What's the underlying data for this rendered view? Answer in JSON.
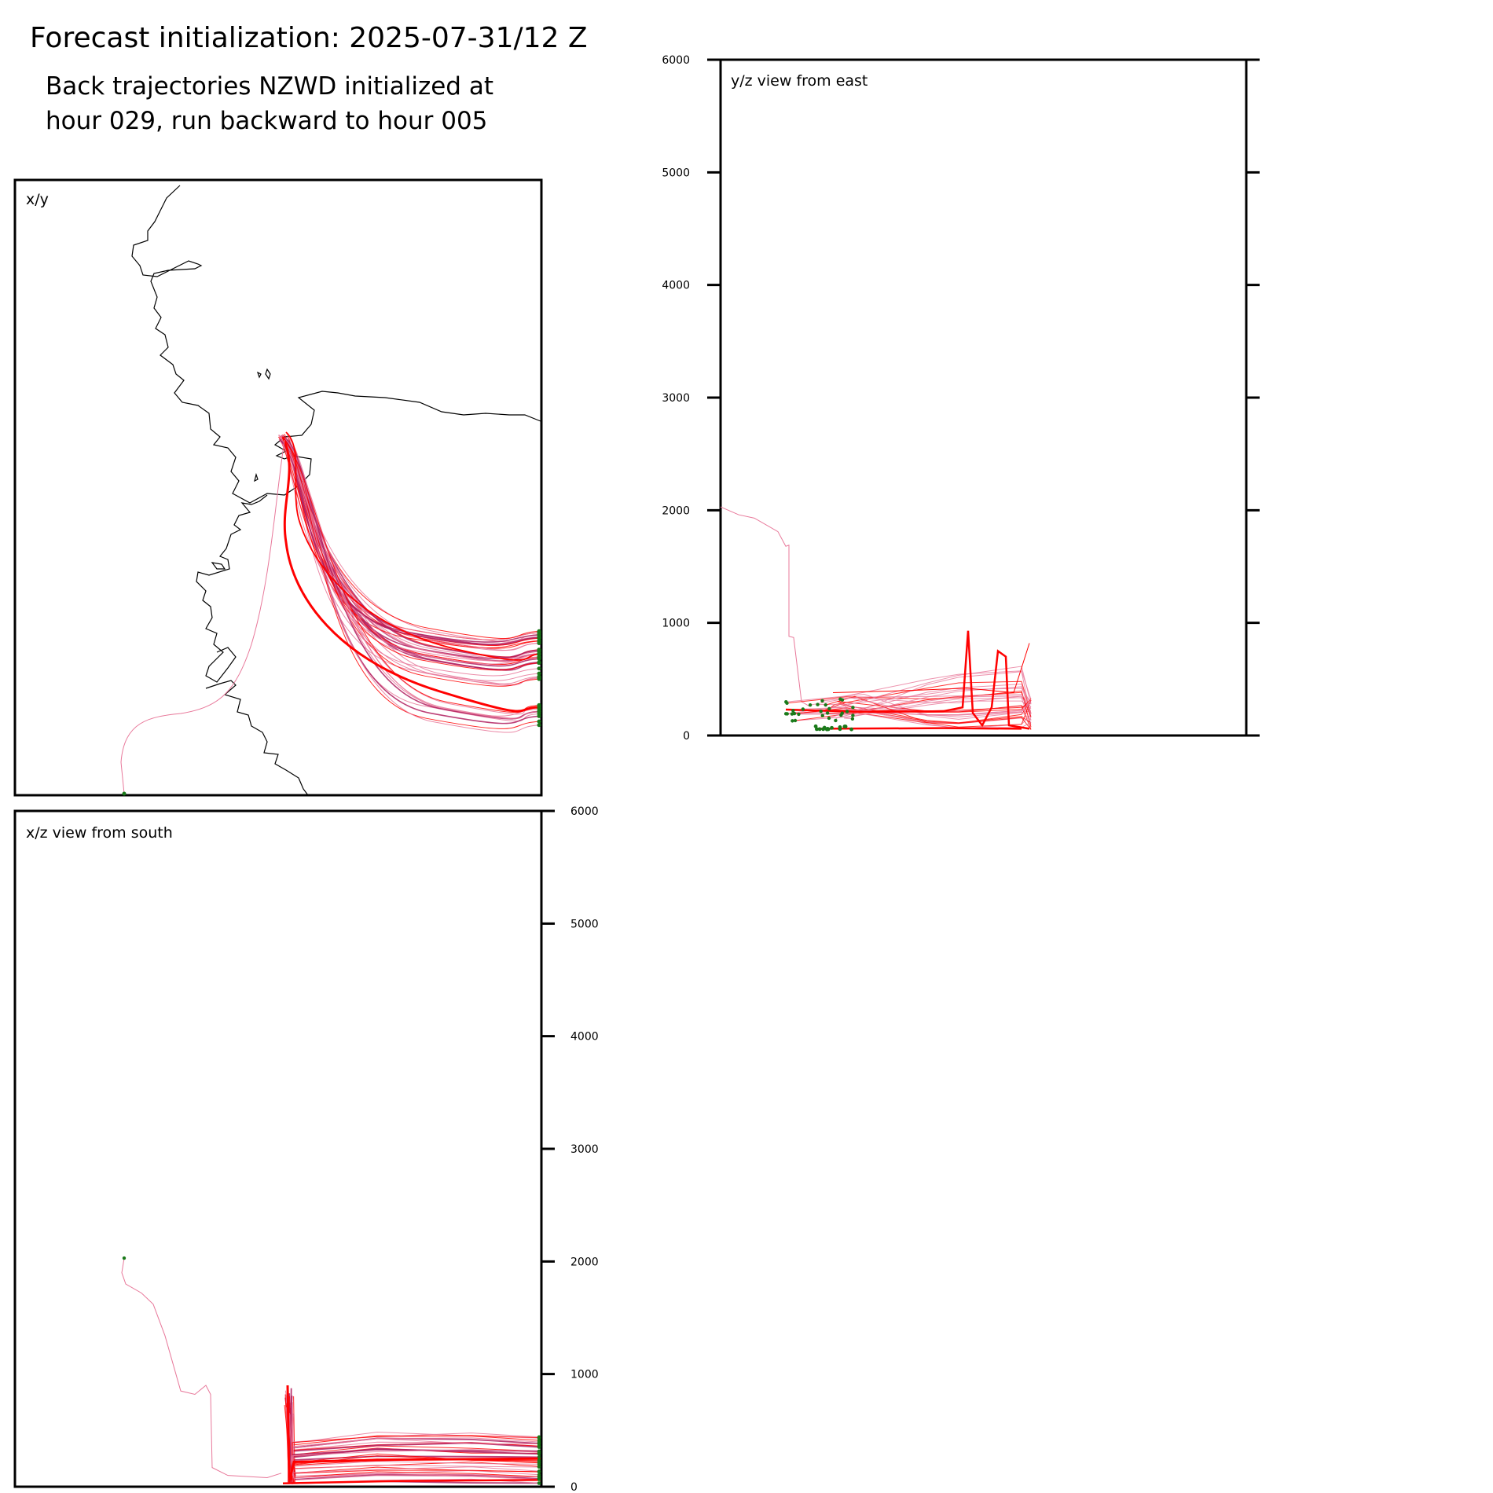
{
  "header": {
    "title": "Forecast initialization: 2025-07-31/12 Z",
    "subtitle_line1": "Back trajectories NZWD initialized at",
    "subtitle_line2": "hour 029, run backward to hour 005"
  },
  "colors": {
    "trajectory_main": "#ff0000",
    "trajectory_faint": "#e8789a",
    "trajectory_dark": "#b02060",
    "endpoint": "#1a7a1a",
    "coastline": "#000000"
  },
  "chart_data": [
    {
      "type": "line",
      "panel": "xy",
      "label": "x/y",
      "axes": "none",
      "content": "coastline map with back-trajectory paths converging on release point"
    },
    {
      "type": "line",
      "panel": "yz",
      "label": "y/z view from east",
      "ylim": [
        0,
        6000
      ],
      "yticks": [
        0,
        1000,
        2000,
        3000,
        4000,
        5000,
        6000
      ],
      "ytick_labels": [
        "0",
        "1000",
        "2000",
        "3000",
        "4000",
        "5000",
        "6000"
      ]
    },
    {
      "type": "line",
      "panel": "xz",
      "label": "x/z view from south",
      "ylim": [
        0,
        6000
      ],
      "yticks": [
        0,
        1000,
        2000,
        3000,
        4000,
        5000,
        6000
      ],
      "ytick_labels": [
        "0",
        "1000",
        "2000",
        "3000",
        "4000",
        "5000",
        "6000"
      ]
    }
  ]
}
